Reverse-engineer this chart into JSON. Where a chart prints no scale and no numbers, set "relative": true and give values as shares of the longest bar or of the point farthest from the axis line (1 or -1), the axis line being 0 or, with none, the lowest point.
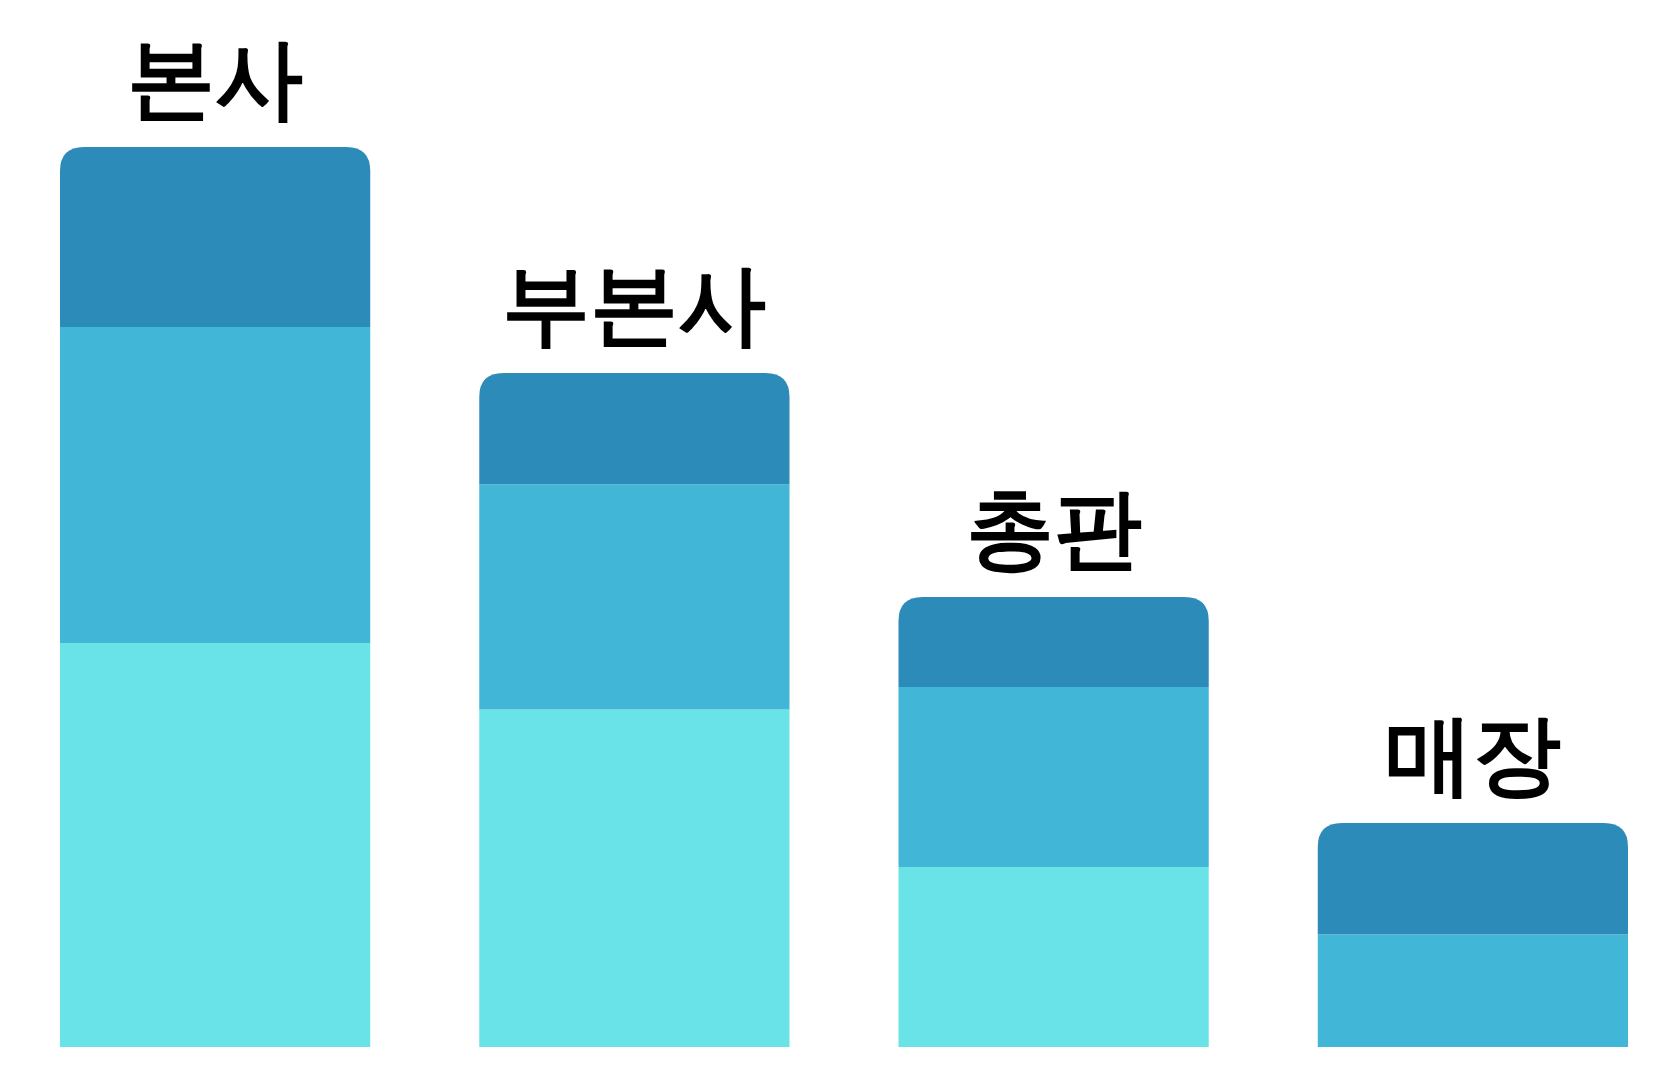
{
  "chart_data": {
    "type": "bar",
    "stacked": true,
    "relative": true,
    "categories": [
      "본사",
      "부본사",
      "총판",
      "매장"
    ],
    "series": [
      {
        "color": "#6ae3e8",
        "values": [
          0.449,
          0.375,
          0.2,
          0
        ]
      },
      {
        "color": "#42b6d6",
        "values": [
          0.351,
          0.25,
          0.2,
          0.125
        ]
      },
      {
        "color": "#2d8bba",
        "values": [
          0.2,
          0.124,
          0.1,
          0.124
        ]
      }
    ]
  }
}
